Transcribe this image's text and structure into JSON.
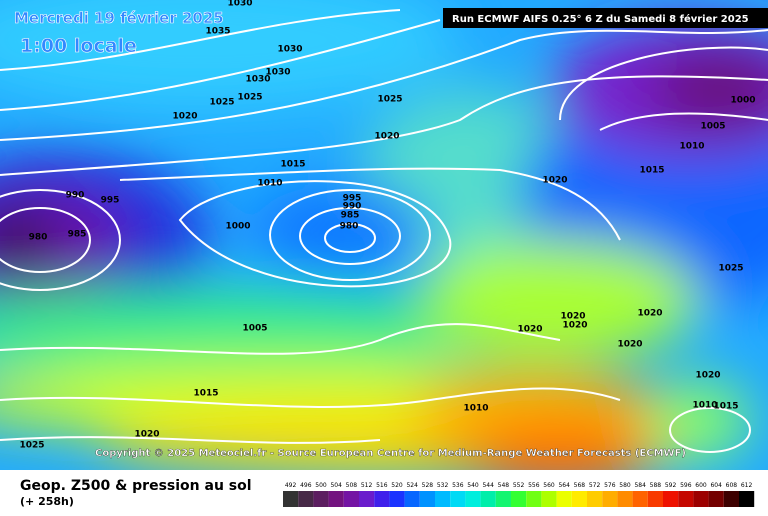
{
  "header": {
    "date": "Mercredi 19 février 2025",
    "time": "1:00 locale",
    "run": "Run ECMWF AIFS 0.25° 6 Z du Samedi 8 février 2025",
    "copyright": "Copyright © 2025 Meteociel.fr - Source European Centre for Medium-Range Weather Forecasts (ECMWF)"
  },
  "legend": {
    "title": "Geop. Z500 & pression au sol",
    "lead": "(+ 258h)",
    "levels": [
      492,
      496,
      500,
      504,
      508,
      512,
      516,
      520,
      524,
      528,
      532,
      536,
      540,
      544,
      548,
      552,
      556,
      560,
      564,
      568,
      572,
      576,
      580,
      584,
      588,
      592,
      596,
      600,
      604,
      608,
      612
    ]
  },
  "isobar_labels": [
    1030,
    1035,
    1030,
    1030,
    1030,
    1025,
    1025,
    1020,
    1025,
    1020,
    1015,
    1010,
    990,
    995,
    985,
    980,
    1000,
    995,
    990,
    985,
    980,
    1020,
    1015,
    1010,
    1005,
    1000,
    1025,
    1020,
    1020,
    1020,
    1020,
    1020,
    1020,
    1010,
    1010,
    1015,
    1005,
    1015,
    1020,
    1025
  ]
}
